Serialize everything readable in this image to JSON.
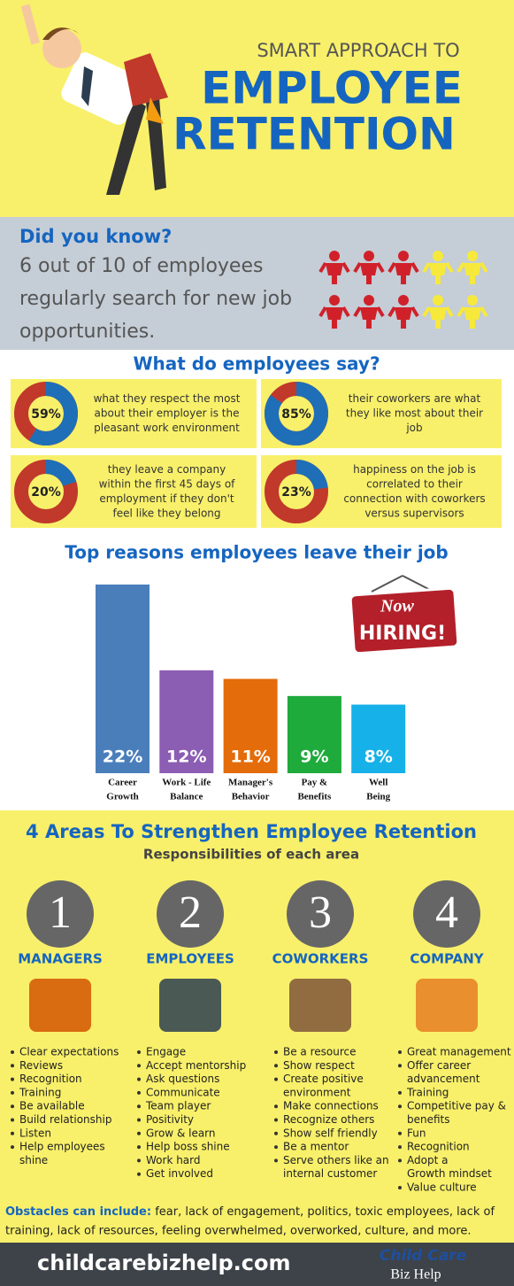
{
  "header": {
    "kicker": "SMART APPROACH TO",
    "title_line1": "EMPLOYEE",
    "title_line2": "RETENTION"
  },
  "did_you_know": {
    "heading": "Did you know?",
    "lines": [
      "6 out of 10 of employees",
      "regularly search for new job",
      "opportunities."
    ]
  },
  "survey": {
    "heading": "What do employees say?",
    "items": [
      {
        "value": 59,
        "value_label": "59%",
        "lines": [
          "what they respect the most",
          "about their employer is the",
          "pleasant work environment"
        ]
      },
      {
        "value": 85,
        "value_label": "85%",
        "lines": [
          "their coworkers are what",
          "they like most about their",
          "job"
        ]
      },
      {
        "value": 20,
        "value_label": "20%",
        "lines": [
          "they leave a company",
          "within the first 45 days of",
          "employment if they don't",
          "feel like they belong"
        ]
      },
      {
        "value": 23,
        "value_label": "23%",
        "lines": [
          "happiness on the job is",
          "correlated to their",
          "connection with coworkers",
          "versus supervisors"
        ]
      }
    ]
  },
  "reasons": {
    "type": "bar",
    "title": "Top reasons employees leave their job",
    "categories": [
      [
        "Career",
        "Growth"
      ],
      [
        "Work - Life",
        "Balance"
      ],
      [
        "Manager's",
        "Behavior"
      ],
      [
        "Pay &",
        "Benefits"
      ],
      [
        "Well",
        "Being"
      ]
    ],
    "values": [
      22,
      12,
      11,
      9,
      8
    ],
    "value_labels": [
      "22%",
      "12%",
      "11%",
      "9%",
      "8%"
    ],
    "colors": [
      "#4a7ebb",
      "#8b5db3",
      "#e46c0a",
      "#1faa3c",
      "#16b1e8"
    ],
    "sign": {
      "line1": "Now",
      "line2": "HIRING!"
    }
  },
  "areas": {
    "heading": "4 Areas To Strengthen Employee Retention",
    "subheading": "Responsibilities of each area",
    "items": [
      {
        "number": "1",
        "name": "MANAGERS",
        "bullets": [
          [
            "Clear expectations"
          ],
          [
            "Reviews"
          ],
          [
            "Recognition"
          ],
          [
            "Training"
          ],
          [
            "Be available"
          ],
          [
            "Build relationship"
          ],
          [
            "Listen"
          ],
          [
            "Help employees",
            "shine"
          ]
        ]
      },
      {
        "number": "2",
        "name": "EMPLOYEES",
        "bullets": [
          [
            "Engage"
          ],
          [
            "Accept mentorship"
          ],
          [
            "Ask questions"
          ],
          [
            "Communicate"
          ],
          [
            "Team player"
          ],
          [
            "Positivity"
          ],
          [
            "Grow & learn"
          ],
          [
            "Help boss shine"
          ],
          [
            "Work hard"
          ],
          [
            "Get involved"
          ]
        ]
      },
      {
        "number": "3",
        "name": "COWORKERS",
        "bullets": [
          [
            "Be a resource"
          ],
          [
            "Show respect"
          ],
          [
            "Create positive",
            "environment"
          ],
          [
            "Make connections"
          ],
          [
            "Recognize others"
          ],
          [
            "Show self friendly"
          ],
          [
            "Be a mentor"
          ],
          [
            "Serve others like an",
            "internal customer"
          ]
        ]
      },
      {
        "number": "4",
        "name": "COMPANY",
        "bullets": [
          [
            "Great management"
          ],
          [
            "Offer career",
            "advancement"
          ],
          [
            "Training"
          ],
          [
            "Competitive pay &",
            "benefits"
          ],
          [
            "Fun"
          ],
          [
            "Recognition"
          ],
          [
            "Adopt a",
            "Growth mindset"
          ],
          [
            "Value culture"
          ]
        ]
      }
    ]
  },
  "obstacles": {
    "label": "Obstacles can include:",
    "line1": "fear, lack of engagement, politics, toxic employees, lack of",
    "line2": "training, lack of resources, feeling overwhelmed, overworked, culture, and more."
  },
  "footer": {
    "site": "childcarebizhelp.com",
    "logo_line1": "Child Care",
    "logo_line2": "Biz Help"
  }
}
